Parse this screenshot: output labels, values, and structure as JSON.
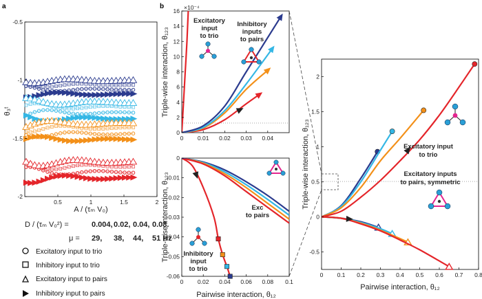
{
  "panel_labels": {
    "a": "a",
    "b": "b"
  },
  "left_panel": {
    "ylabel": "θ₃ᵗ",
    "xlabel": "A / (τₘ V₀)",
    "dlabel": "D / (τₘ V₀²)  =",
    "mulabel": "μ   =",
    "d_values": [
      "0.004,",
      "0.02,",
      "0.04,",
      "0.08."
    ],
    "mu_values": [
      "29,",
      "38,",
      "44,",
      "51 Hz"
    ],
    "colors": [
      "#e4252a",
      "#f39019",
      "#34b7e5",
      "#2b3b8e"
    ]
  },
  "legend": [
    {
      "marker": "circle",
      "label": "Excitatory input to trio"
    },
    {
      "marker": "square",
      "label": "Inhibitory input to trio"
    },
    {
      "marker": "triangle",
      "label": "Excitatory input to pairs"
    },
    {
      "marker": "arrow",
      "label": "Inhibitory input to pairs"
    }
  ],
  "texts": {
    "b_ylabel": "Triple-wise interaction,  θ₁₂₃",
    "b_exp": "×10⁻⁴",
    "ann_exc_trio": [
      "Excitatory",
      "input",
      "to trio"
    ],
    "ann_inh_pairs": [
      "Inhibitory",
      "inputs",
      "to pairs"
    ],
    "ann_exc_pairs_short": [
      "Exc",
      "to pairs"
    ],
    "ann_inh_trio": [
      "Inhibitory",
      "input",
      "to trio"
    ],
    "b_xlabel": "Pairwise interaction,  θ₁₂",
    "right_ylabel": "Triple-wise interaction,  θ₁₂₃",
    "right_xlabel": "Pairwise interaction,   θ₁₂",
    "ann_right_trio": [
      "Excitatory input",
      "to trio"
    ],
    "ann_right_pairs": [
      "Excitatory inputs",
      "to pairs, symmetric"
    ]
  },
  "chart_data": [
    {
      "id": "a",
      "type": "line",
      "title": "",
      "xlabel": "A / (τₘ V₀)",
      "ylabel": "θ₃ᵗ",
      "xlim": [
        0,
        2
      ],
      "ylim": [
        -2,
        -0.5
      ],
      "y_reversed": true,
      "xticks": [
        0.5,
        1,
        1.5,
        2
      ],
      "yticks": [
        -0.5,
        -1,
        -1.5,
        -2
      ],
      "series": [
        {
          "name": "D=0.004 exc trio",
          "color": "#2b3b8e",
          "marker": "circle",
          "y0": -1.08,
          "amp": 0.03
        },
        {
          "name": "D=0.004 inh trio",
          "color": "#2b3b8e",
          "marker": "square",
          "y0": -1.04,
          "amp": 0.03
        },
        {
          "name": "D=0.004 exc pairs",
          "color": "#2b3b8e",
          "marker": "triangle",
          "y0": -1.0,
          "amp": 0.03
        },
        {
          "name": "D=0.004 inh pairs",
          "color": "#2b3b8e",
          "marker": "arrow",
          "y0": -1.12,
          "amp": 0.03
        },
        {
          "name": "D=0.02 exc trio",
          "color": "#34b7e5",
          "marker": "circle",
          "y0": -1.28,
          "amp": 0.04
        },
        {
          "name": "D=0.02 inh trio",
          "color": "#34b7e5",
          "marker": "square",
          "y0": -1.23,
          "amp": 0.04
        },
        {
          "name": "D=0.02 exc pairs",
          "color": "#34b7e5",
          "marker": "triangle",
          "y0": -1.19,
          "amp": 0.04
        },
        {
          "name": "D=0.02 inh pairs",
          "color": "#34b7e5",
          "marker": "arrow",
          "y0": -1.33,
          "amp": 0.04
        },
        {
          "name": "D=0.04 exc trio",
          "color": "#f39019",
          "marker": "circle",
          "y0": -1.46,
          "amp": 0.04
        },
        {
          "name": "D=0.04 inh trio",
          "color": "#f39019",
          "marker": "square",
          "y0": -1.41,
          "amp": 0.04
        },
        {
          "name": "D=0.04 exc pairs",
          "color": "#f39019",
          "marker": "triangle",
          "y0": -1.37,
          "amp": 0.04
        },
        {
          "name": "D=0.04 inh pairs",
          "color": "#f39019",
          "marker": "arrow",
          "y0": -1.51,
          "amp": 0.04
        },
        {
          "name": "D=0.08 exc trio",
          "color": "#e4252a",
          "marker": "circle",
          "y0": -1.79,
          "amp": 0.05
        },
        {
          "name": "D=0.08 inh trio",
          "color": "#e4252a",
          "marker": "square",
          "y0": -1.74,
          "amp": 0.05
        },
        {
          "name": "D=0.08 exc pairs",
          "color": "#e4252a",
          "marker": "triangle",
          "y0": -1.7,
          "amp": 0.05
        },
        {
          "name": "D=0.08 inh pairs",
          "color": "#e4252a",
          "marker": "arrow",
          "y0": -1.84,
          "amp": 0.05
        }
      ]
    },
    {
      "id": "b-top",
      "type": "line",
      "title": "",
      "xlabel": "",
      "ylabel": "Triple-wise interaction,  θ₁₂₃",
      "y_scale": "×10⁻⁴",
      "xlim": [
        0,
        0.05
      ],
      "ylim": [
        0,
        16
      ],
      "xticks": [
        0,
        0.01,
        0.02,
        0.03,
        0.04
      ],
      "yticks": [
        0,
        2,
        4,
        6,
        8,
        10,
        12,
        14,
        16
      ],
      "series": [
        {
          "name": "exc trio",
          "color": "#e4252a",
          "x": [
            0,
            0.0008,
            0.0016,
            0.0024,
            0.003
          ],
          "y": [
            0,
            4,
            8,
            12,
            16
          ]
        },
        {
          "name": "inh pairs D=0.08",
          "color": "#e4252a",
          "marker": "arrow",
          "x": [
            0,
            0.01,
            0.02,
            0.03,
            0.036
          ],
          "y": [
            0,
            0.4,
            1.7,
            3.8,
            5.0
          ]
        },
        {
          "name": "inh pairs D=0.04",
          "color": "#f39019",
          "marker": "arrow",
          "x": [
            0,
            0.01,
            0.02,
            0.03,
            0.04
          ],
          "y": [
            0,
            0.6,
            2.6,
            5.7,
            8.2
          ]
        },
        {
          "name": "inh pairs D=0.02",
          "color": "#34b7e5",
          "marker": "arrow",
          "x": [
            0,
            0.01,
            0.02,
            0.03,
            0.042
          ],
          "y": [
            0,
            0.7,
            2.9,
            6.4,
            11.0
          ]
        },
        {
          "name": "inh pairs D=0.004",
          "color": "#2b3b8e",
          "marker": "arrow",
          "x": [
            0,
            0.01,
            0.02,
            0.03,
            0.046
          ],
          "y": [
            0,
            0.9,
            3.5,
            8.0,
            15.2
          ]
        }
      ]
    },
    {
      "id": "b-bottom",
      "type": "line",
      "title": "",
      "xlabel": "Pairwise interaction,  θ₁₂",
      "ylabel": "Triple-wise interaction,  θ₁₂₃",
      "xlim": [
        0,
        0.1
      ],
      "ylim": [
        -0.06,
        0
      ],
      "xticks": [
        0,
        0.02,
        0.04,
        0.06,
        0.08,
        0.1
      ],
      "yticks": [
        0,
        -0.01,
        -0.02,
        -0.03,
        -0.04,
        -0.05,
        -0.06
      ],
      "series": [
        {
          "name": "exc pairs D=0.004",
          "color": "#2b3b8e",
          "x": [
            0,
            0.02,
            0.04,
            0.06,
            0.08,
            0.1
          ],
          "y": [
            0,
            -0.002,
            -0.006,
            -0.012,
            -0.019,
            -0.027
          ]
        },
        {
          "name": "exc pairs D=0.02",
          "color": "#34b7e5",
          "x": [
            0,
            0.02,
            0.04,
            0.06,
            0.08,
            0.1
          ],
          "y": [
            0,
            -0.0023,
            -0.007,
            -0.0135,
            -0.021,
            -0.029
          ]
        },
        {
          "name": "exc pairs D=0.04",
          "color": "#f39019",
          "x": [
            0,
            0.02,
            0.04,
            0.06,
            0.08,
            0.1
          ],
          "y": [
            0,
            -0.0026,
            -0.008,
            -0.015,
            -0.023,
            -0.031
          ]
        },
        {
          "name": "exc pairs D=0.08",
          "color": "#e4252a",
          "x": [
            0,
            0.02,
            0.04,
            0.06,
            0.08,
            0.1
          ],
          "y": [
            0,
            -0.003,
            -0.009,
            -0.017,
            -0.025,
            -0.033
          ]
        },
        {
          "name": "inh trio",
          "color": "#e4252a",
          "marker": "square",
          "x": [
            0,
            0.01,
            0.02,
            0.03,
            0.034,
            0.038,
            0.042,
            0.045
          ],
          "y": [
            0,
            -0.004,
            -0.015,
            -0.03,
            -0.041,
            -0.049,
            -0.055,
            -0.06
          ]
        },
        {
          "name": "inh pairs",
          "color": "#2b3b8e",
          "x": [
            0,
            0.01,
            0.02,
            0.03
          ],
          "y": [
            0,
            0.0004,
            0.0006,
            0.0009
          ]
        }
      ]
    },
    {
      "id": "b-right",
      "type": "line",
      "title": "",
      "xlabel": "Pairwise interaction,   θ₁₂",
      "ylabel": "Triple-wise interaction,  θ₁₂₃",
      "xlim": [
        0,
        0.8
      ],
      "ylim": [
        -0.75,
        2.25
      ],
      "xticks": [
        0,
        0.1,
        0.2,
        0.3,
        0.4,
        0.5,
        0.6,
        0.7,
        0.8
      ],
      "yticks": [
        -0.5,
        0,
        0.5,
        1,
        1.5,
        2
      ],
      "series": [
        {
          "name": "exc trio D=0.004",
          "color": "#2b3b8e",
          "marker": "circle",
          "x": [
            0,
            0.1,
            0.2,
            0.285
          ],
          "y": [
            0,
            0.16,
            0.55,
            0.93
          ]
        },
        {
          "name": "exc trio D=0.02",
          "color": "#34b7e5",
          "marker": "circle",
          "x": [
            0,
            0.1,
            0.2,
            0.3,
            0.36
          ],
          "y": [
            0,
            0.15,
            0.5,
            0.95,
            1.22
          ]
        },
        {
          "name": "exc trio D=0.04",
          "color": "#f39019",
          "marker": "circle",
          "x": [
            0,
            0.1,
            0.2,
            0.3,
            0.4,
            0.52
          ],
          "y": [
            0,
            0.13,
            0.42,
            0.8,
            1.12,
            1.52
          ]
        },
        {
          "name": "exc trio D=0.08",
          "color": "#e4252a",
          "marker": "circle",
          "x": [
            0,
            0.1,
            0.2,
            0.3,
            0.4,
            0.5,
            0.6,
            0.7,
            0.78
          ],
          "y": [
            0,
            0.08,
            0.28,
            0.52,
            0.8,
            1.1,
            1.45,
            1.85,
            2.18
          ]
        },
        {
          "name": "exc pairs D=0.004",
          "color": "#2b3b8e",
          "marker": "triangle",
          "x": [
            0,
            0.1,
            0.2,
            0.29
          ],
          "y": [
            0,
            -0.02,
            -0.07,
            -0.15
          ]
        },
        {
          "name": "exc pairs D=0.02",
          "color": "#34b7e5",
          "marker": "triangle",
          "x": [
            0,
            0.1,
            0.2,
            0.3,
            0.36
          ],
          "y": [
            0,
            -0.02,
            -0.08,
            -0.17,
            -0.24
          ]
        },
        {
          "name": "exc pairs D=0.04",
          "color": "#f39019",
          "marker": "triangle",
          "x": [
            0,
            0.1,
            0.2,
            0.3,
            0.44
          ],
          "y": [
            0,
            -0.02,
            -0.09,
            -0.19,
            -0.36
          ]
        },
        {
          "name": "exc pairs D=0.08",
          "color": "#e4252a",
          "marker": "triangle",
          "x": [
            0,
            0.1,
            0.2,
            0.3,
            0.4,
            0.5,
            0.65
          ],
          "y": [
            0,
            -0.02,
            -0.1,
            -0.2,
            -0.33,
            -0.47,
            -0.71
          ]
        }
      ]
    }
  ]
}
